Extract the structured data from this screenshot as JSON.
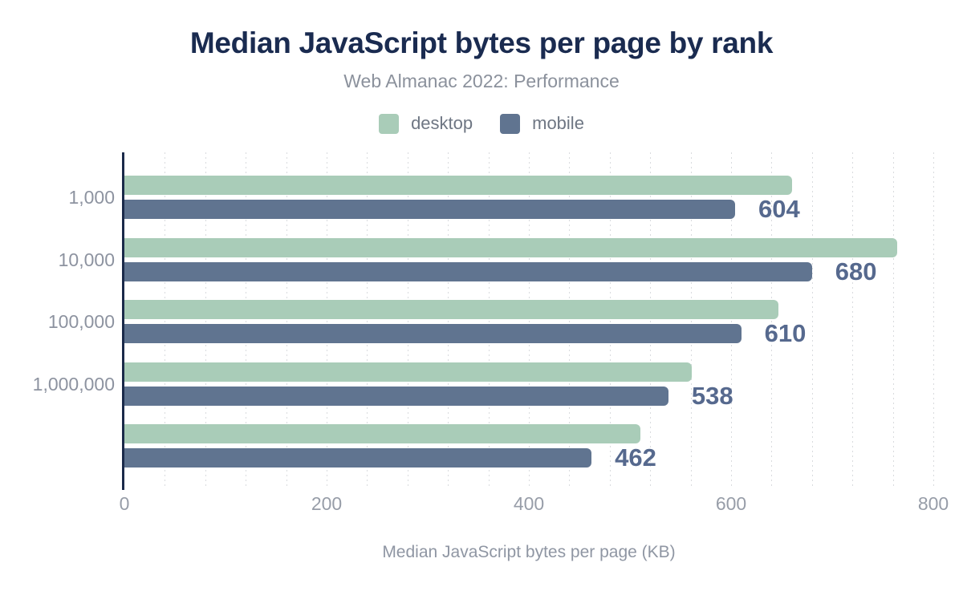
{
  "header": {
    "title": "Median JavaScript bytes per page by rank",
    "subtitle": "Web Almanac 2022: Performance"
  },
  "chart_data": {
    "type": "bar",
    "orientation": "horizontal",
    "title": "Median JavaScript bytes per page by rank",
    "subtitle": "Web Almanac 2022: Performance",
    "categories": [
      "1,000",
      "10,000",
      "100,000",
      "1,000,000",
      ""
    ],
    "series": [
      {
        "name": "desktop",
        "color": "#a9ccb8",
        "values": [
          660,
          764,
          647,
          561,
          510
        ],
        "show_labels": false
      },
      {
        "name": "mobile",
        "color": "#607490",
        "values": [
          604,
          680,
          610,
          538,
          462
        ],
        "show_labels": true
      }
    ],
    "data_labels": [
      "604",
      "680",
      "610",
      "538",
      "462"
    ],
    "xlabel": "Median JavaScript bytes per page (KB)",
    "ylabel": "",
    "xlim": [
      0,
      800
    ],
    "xticks": [
      "0",
      "200",
      "400",
      "600",
      "800"
    ],
    "xtick_values": [
      0,
      200,
      400,
      600,
      800
    ],
    "grid_step": 40,
    "grid_style": "vertical-dotted",
    "legend_position": "top-center"
  },
  "colors": {
    "background": "#ffffff",
    "title": "#1a2b50",
    "subtitle": "#8b919c",
    "axis_line": "#1b2a4a",
    "gridline": "#d9dbde",
    "tick_label": "#979da8",
    "value_label": "#56698e",
    "desktop_bar": "#a9ccb8",
    "mobile_bar": "#607490"
  }
}
